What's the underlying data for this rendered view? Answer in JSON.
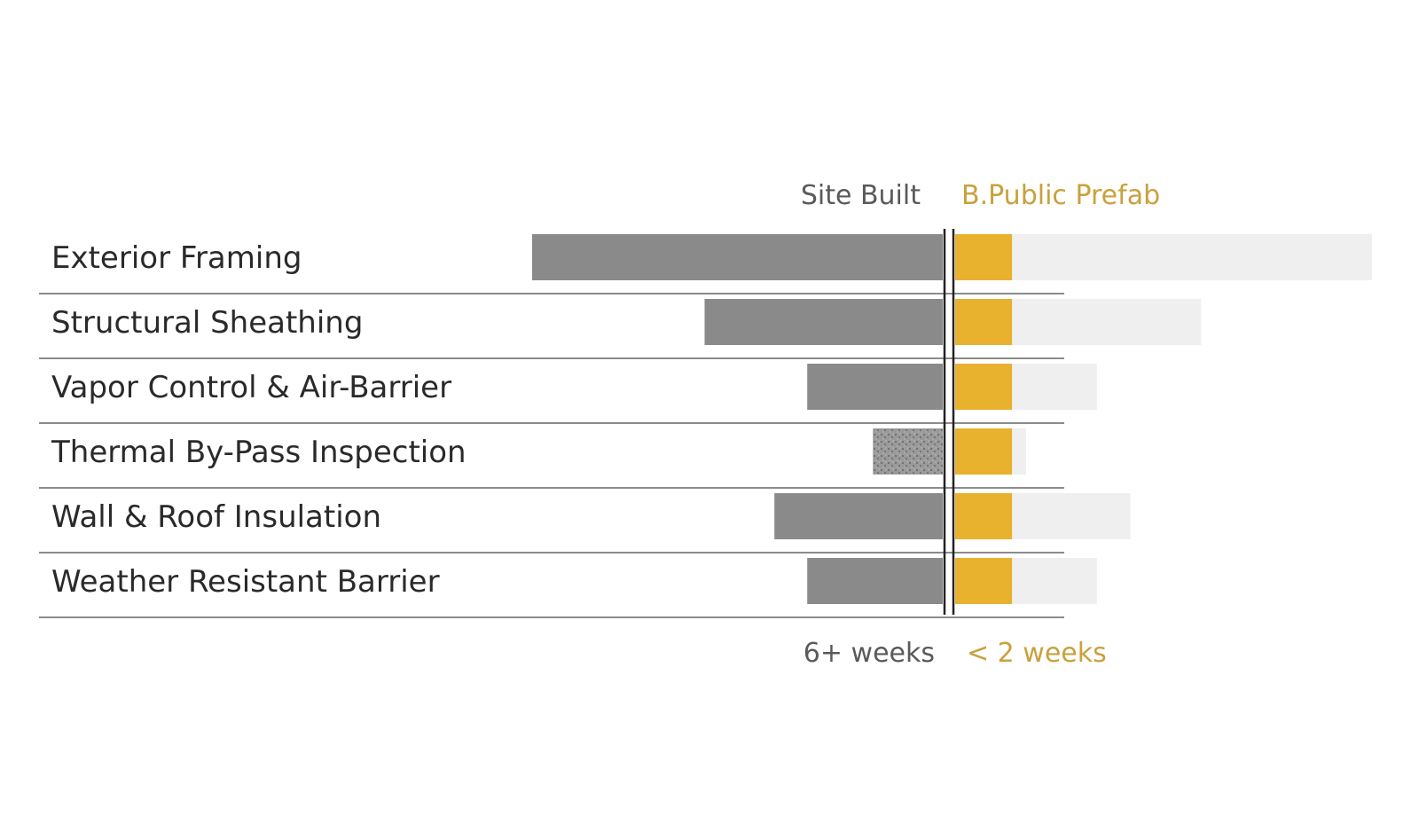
{
  "chart_data": {
    "type": "bar",
    "headers": {
      "site": "Site Built",
      "prefab": "B.Public Prefab"
    },
    "footers": {
      "site": "6+ weeks",
      "prefab": "< 2 weeks"
    },
    "categories": [
      "Exterior Framing",
      "Structural Sheathing",
      "Vapor Control & Air-Barrier",
      "Thermal By-Pass Inspection",
      "Wall & Roof Insulation",
      "Weather Resistant Barrier"
    ],
    "series": [
      {
        "name": "Site Built",
        "values": [
          100,
          58,
          33,
          17,
          41,
          33
        ],
        "color": "#8a8a8a"
      },
      {
        "name": "B.Public Prefab",
        "values": [
          13,
          13,
          13,
          13,
          13,
          13
        ],
        "color": "#e8b12e"
      }
    ],
    "background_values": [
      100,
      59,
      34,
      17,
      42,
      34
    ],
    "background_color": "#efefef",
    "hatched_index": 3,
    "colors": {
      "site_text": "#5a5a5a",
      "prefab_text": "#c9a13c",
      "divider": "#222222",
      "row_line": "#8c8c8c"
    }
  }
}
